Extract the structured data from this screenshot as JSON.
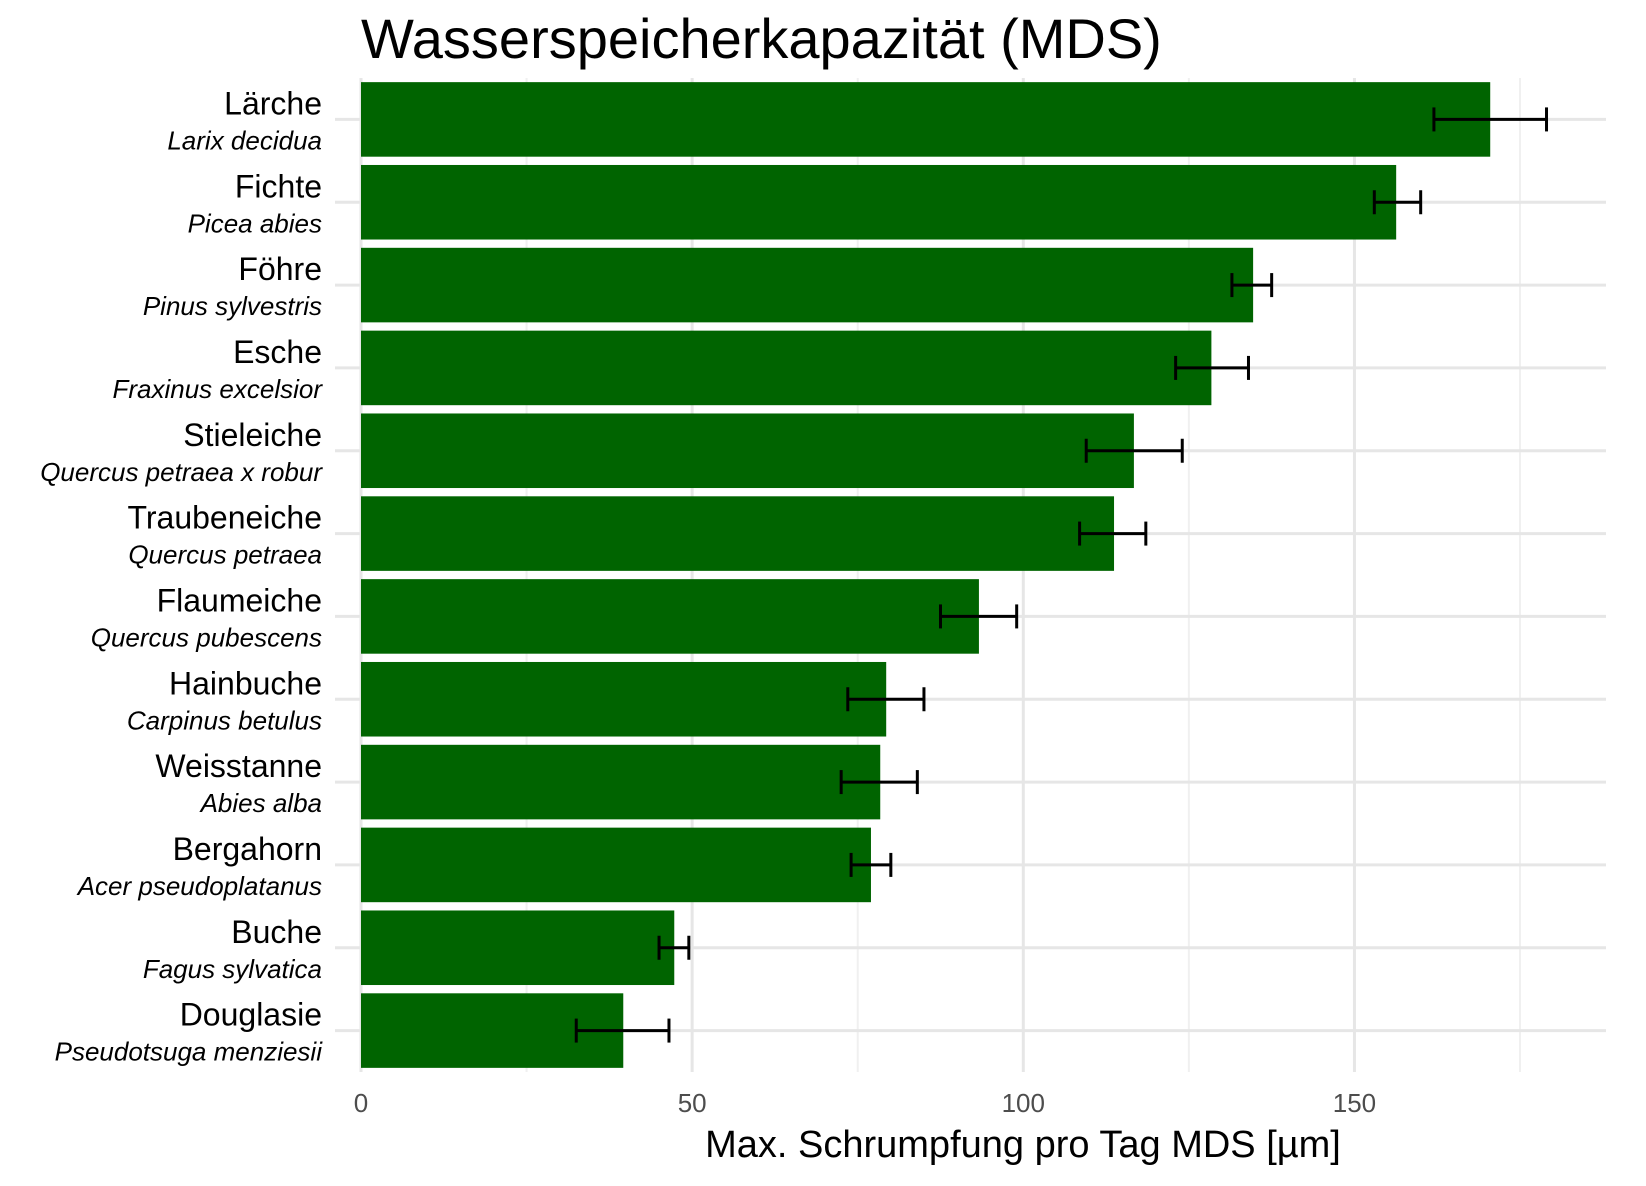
{
  "chart_data": {
    "type": "bar",
    "orientation": "horizontal",
    "title": "Wasserspeicherkapazität (MDS)",
    "xlabel": "Max. Schrumpfung pro Tag MDS [µm]",
    "ylabel": "",
    "xlim": [
      0,
      188
    ],
    "xticks": [
      0,
      50,
      100,
      150
    ],
    "grid": true,
    "bar_color": "#006400",
    "error_bar_color": "#000000",
    "categories": [
      {
        "name": "Lärche",
        "latin": "Larix decidua",
        "value": 170.5,
        "err_low": 162.0,
        "err_high": 179.0
      },
      {
        "name": "Fichte",
        "latin": "Picea abies",
        "value": 156.3,
        "err_low": 153.0,
        "err_high": 160.0
      },
      {
        "name": "Föhre",
        "latin": "Pinus sylvestris",
        "value": 134.7,
        "err_low": 131.5,
        "err_high": 137.5
      },
      {
        "name": "Esche",
        "latin": "Fraxinus excelsior",
        "value": 128.4,
        "err_low": 123.0,
        "err_high": 134.0
      },
      {
        "name": "Stieleiche",
        "latin": "Quercus petraea x robur",
        "value": 116.7,
        "err_low": 109.5,
        "err_high": 124.0
      },
      {
        "name": "Traubeneiche",
        "latin": "Quercus petraea",
        "value": 113.7,
        "err_low": 108.5,
        "err_high": 118.5
      },
      {
        "name": "Flaumeiche",
        "latin": "Quercus pubescens",
        "value": 93.3,
        "err_low": 87.5,
        "err_high": 99.0
      },
      {
        "name": "Hainbuche",
        "latin": "Carpinus betulus",
        "value": 79.3,
        "err_low": 73.5,
        "err_high": 85.0
      },
      {
        "name": "Weisstanne",
        "latin": "Abies alba",
        "value": 78.4,
        "err_low": 72.5,
        "err_high": 84.0
      },
      {
        "name": "Bergahorn",
        "latin": "Acer pseudoplatanus",
        "value": 77.0,
        "err_low": 74.0,
        "err_high": 80.0
      },
      {
        "name": "Buche",
        "latin": "Fagus sylvatica",
        "value": 47.3,
        "err_low": 45.0,
        "err_high": 49.5
      },
      {
        "name": "Douglasie",
        "latin": "Pseudotsuga menziesii",
        "value": 39.6,
        "err_low": 32.5,
        "err_high": 46.5
      }
    ]
  }
}
